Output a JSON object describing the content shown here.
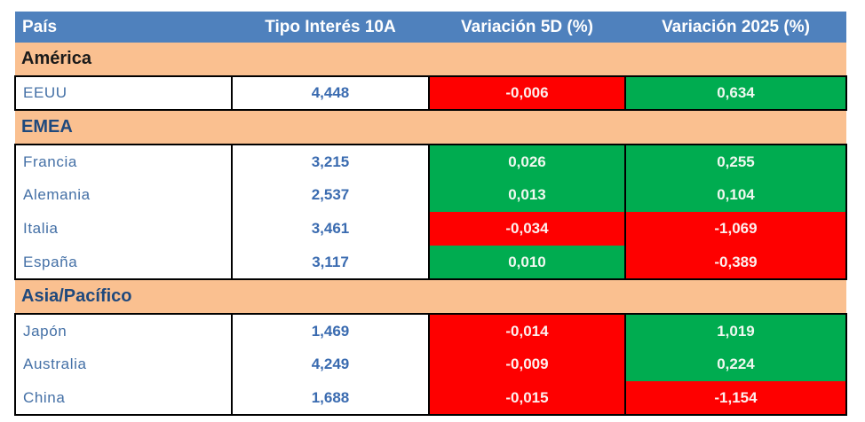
{
  "chart_data": {
    "type": "table",
    "columns": [
      "País",
      "Tipo Interés 10A",
      "Variación 5D (%)",
      "Variación 2025 (%)"
    ],
    "number_format": "comma-decimal",
    "sections": [
      {
        "name": "América",
        "title_color": "#1A1A1A",
        "rows": [
          {
            "country": "EEUU",
            "rate": "4,448",
            "rate_value": 4.448,
            "var_5d": "-0,006",
            "var_5d_value": -0.006,
            "var_2025": "0,634",
            "var_2025_value": 0.634
          }
        ]
      },
      {
        "name": "EMEA",
        "title_color": "#1F497D",
        "rows": [
          {
            "country": "Francia",
            "rate": "3,215",
            "rate_value": 3.215,
            "var_5d": "0,026",
            "var_5d_value": 0.026,
            "var_2025": "0,255",
            "var_2025_value": 0.255
          },
          {
            "country": "Alemania",
            "rate": "2,537",
            "rate_value": 2.537,
            "var_5d": "0,013",
            "var_5d_value": 0.013,
            "var_2025": "0,104",
            "var_2025_value": 0.104
          },
          {
            "country": "Italia",
            "rate": "3,461",
            "rate_value": 3.461,
            "var_5d": "-0,034",
            "var_5d_value": -0.034,
            "var_2025": "-1,069",
            "var_2025_value": -1.069
          },
          {
            "country": "España",
            "rate": "3,117",
            "rate_value": 3.117,
            "var_5d": "0,010",
            "var_5d_value": 0.01,
            "var_2025": "-0,389",
            "var_2025_value": -0.389
          }
        ]
      },
      {
        "name": "Asia/Pacífico",
        "title_color": "#1F497D",
        "rows": [
          {
            "country": "Japón",
            "rate": "1,469",
            "rate_value": 1.469,
            "var_5d": "-0,014",
            "var_5d_value": -0.014,
            "var_2025": "1,019",
            "var_2025_value": 1.019
          },
          {
            "country": "Australia",
            "rate": "4,249",
            "rate_value": 4.249,
            "var_5d": "-0,009",
            "var_5d_value": -0.009,
            "var_2025": "0,224",
            "var_2025_value": 0.224
          },
          {
            "country": "China",
            "rate": "1,688",
            "rate_value": 1.688,
            "var_5d": "-0,015",
            "var_5d_value": -0.015,
            "var_2025": "-1,154",
            "var_2025_value": -1.154
          }
        ]
      }
    ]
  },
  "colors": {
    "page_bg": "#FFFFFF",
    "header_bg": "#4F81BD",
    "header_text": "#FFFFFF",
    "section_bg": "#FAC090",
    "positive_bg": "#00AC50",
    "negative_bg": "#FE0000",
    "positive_text": "#EFF8F0",
    "negative_text": "#FDF0EE",
    "country_text": "#4470A6",
    "rate_text": "#3A6BB0",
    "border": "#000000"
  }
}
